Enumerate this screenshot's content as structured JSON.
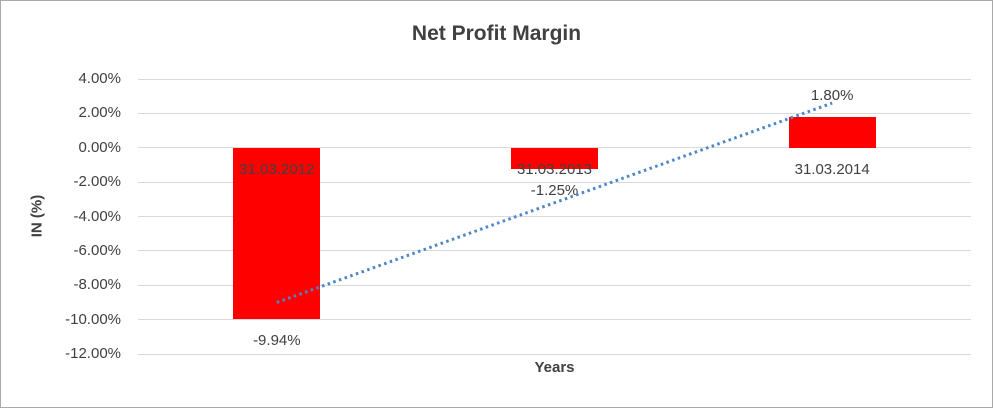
{
  "chart_data": {
    "type": "bar",
    "title": "Net Profit Margin",
    "xlabel": "Years",
    "ylabel": "IN (%)",
    "categories": [
      "31.03.2012",
      "31.03.2013",
      "31.03.2014"
    ],
    "values": [
      -9.94,
      -1.25,
      1.8
    ],
    "data_labels": [
      "-9.94%",
      "-1.25%",
      "1.80%"
    ],
    "ylim": [
      -12,
      4
    ],
    "ytick_step": 2,
    "ytick_labels": [
      "4.00%",
      "2.00%",
      "0.00%",
      "-2.00%",
      "-4.00%",
      "-6.00%",
      "-8.00%",
      "-10.00%",
      "-12.00%"
    ],
    "grid": true,
    "legend": "none",
    "trendline": {
      "type": "linear",
      "style": "dotted",
      "start_value": -9.0,
      "end_value": 2.6
    },
    "colors": {
      "bar": "#ff0000",
      "trendline": "#4a86c8",
      "gridline": "#d9d9d9",
      "text": "#404040"
    }
  }
}
